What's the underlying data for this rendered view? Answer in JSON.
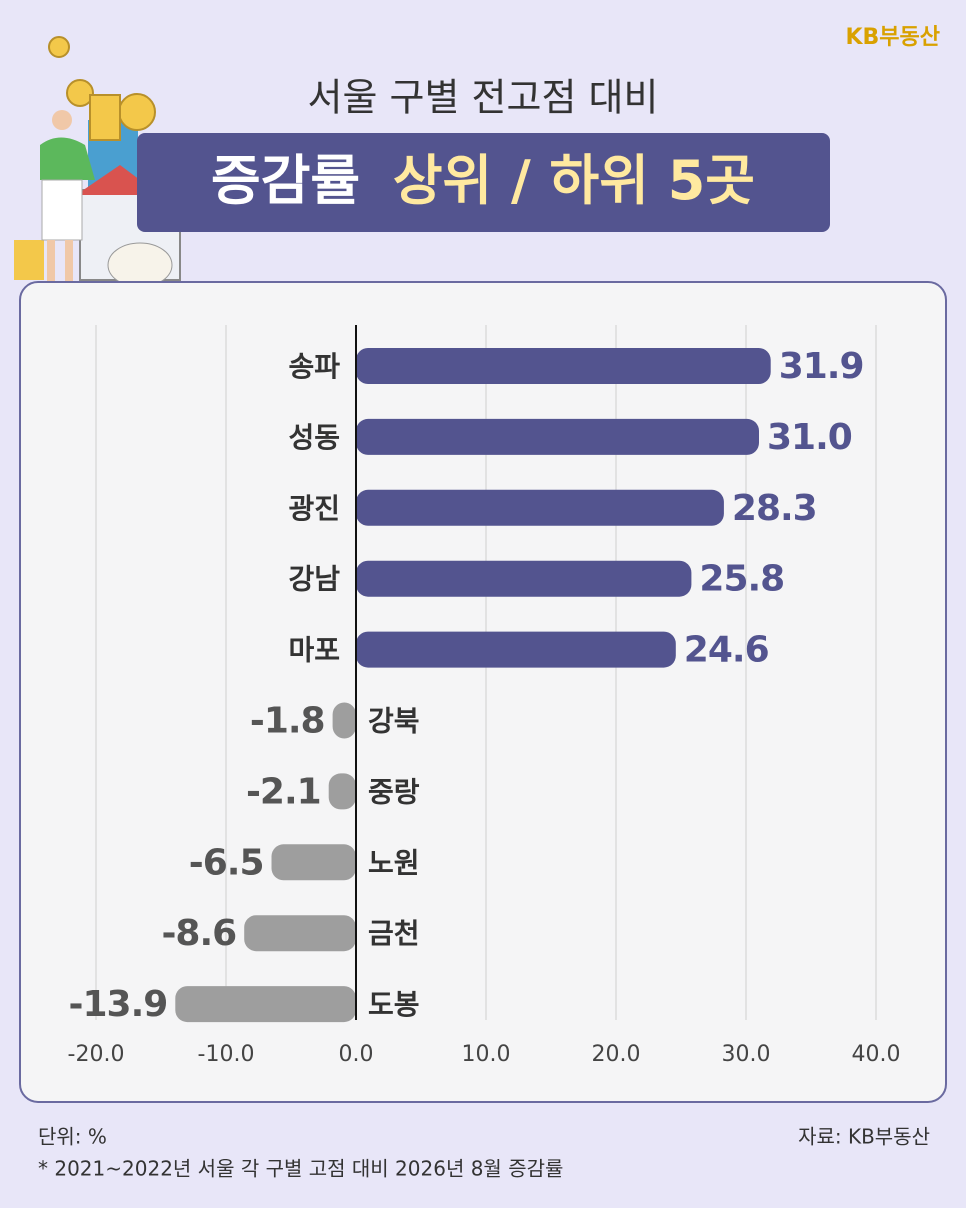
{
  "chart_data": {
    "type": "bar",
    "orientation": "horizontal",
    "logo": "KB부동산",
    "subtitle": "서울 구별 전고점 대비",
    "title": "증감률",
    "title_highlight": "상위 / 하위 5곳",
    "categories": [
      "송파",
      "성동",
      "광진",
      "강남",
      "마포",
      "강북",
      "중랑",
      "노원",
      "금천",
      "도봉"
    ],
    "values": [
      31.9,
      31.0,
      28.3,
      25.8,
      24.6,
      -1.8,
      -2.1,
      -6.5,
      -8.6,
      -13.9
    ],
    "value_labels": [
      "31.9",
      "31.0",
      "28.3",
      "25.8",
      "24.6",
      "-1.8",
      "-2.1",
      "-6.5",
      "-8.6",
      "-13.9"
    ],
    "color": "#53548f",
    "negative_color": "#9e9e9e",
    "xlim": [
      -20,
      40
    ],
    "xticks": [
      {
        "value": -20,
        "label": "-20.0"
      },
      {
        "value": -10,
        "label": "-10.0"
      },
      {
        "value": 0,
        "label": "0.0"
      },
      {
        "value": 10,
        "label": "10.0"
      },
      {
        "value": 20,
        "label": "20.0"
      },
      {
        "value": 30,
        "label": "30.0"
      },
      {
        "value": 40,
        "label": "40.0"
      }
    ],
    "grid": true,
    "unit_note": "단위: %",
    "footnote": "* 2021~2022년 서울 각 구별 고점 대비 2026년 8월 증감률",
    "source": "자료: KB부동산"
  }
}
